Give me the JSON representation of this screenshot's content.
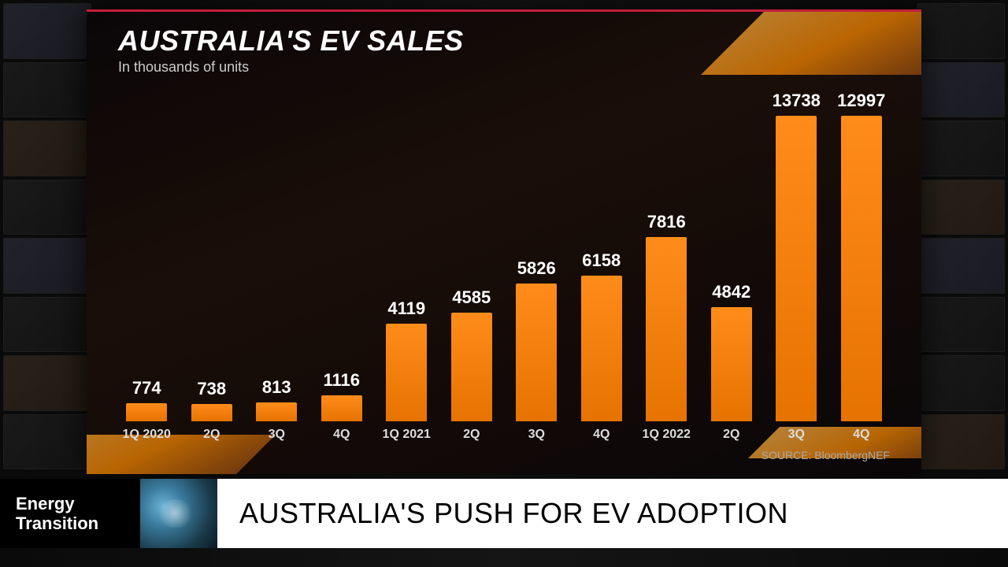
{
  "chart": {
    "type": "bar",
    "title": "AUSTRALIA'S EV SALES",
    "subtitle": "In thousands of units",
    "source": "SOURCE: BloombergNEF",
    "categories": [
      "1Q 2020",
      "2Q",
      "3Q",
      "4Q",
      "1Q 2021",
      "2Q",
      "3Q",
      "4Q",
      "1Q 2022",
      "2Q",
      "3Q",
      "4Q"
    ],
    "values": [
      774,
      738,
      813,
      1116,
      4119,
      4585,
      5826,
      6158,
      7816,
      4842,
      13738,
      12997
    ],
    "bar_color": "#ff8c1a",
    "bar_gradient_bottom": "#e67300",
    "background_color": "#0a0608",
    "accent_color": "#c41e3a",
    "gold_color": "#ff8c00",
    "text_color": "#ffffff",
    "subtitle_color": "#cccccc",
    "axis_label_color": "#dddddd",
    "source_color": "#aaaaaa",
    "title_fontsize": 36,
    "subtitle_fontsize": 18,
    "value_fontsize": 22,
    "axis_fontsize": 16,
    "source_fontsize": 14,
    "ymax": 14000,
    "bar_width_pct": 72
  },
  "lower_third": {
    "segment_line1": "Energy",
    "segment_line2": "Transition",
    "headline": "AUSTRALIA'S PUSH FOR EV ADOPTION",
    "segment_bg": "#000000",
    "segment_text_color": "#ffffff",
    "headline_bg": "#ffffff",
    "headline_text_color": "#000000",
    "headline_fontsize": 36,
    "segment_fontsize": 22
  }
}
